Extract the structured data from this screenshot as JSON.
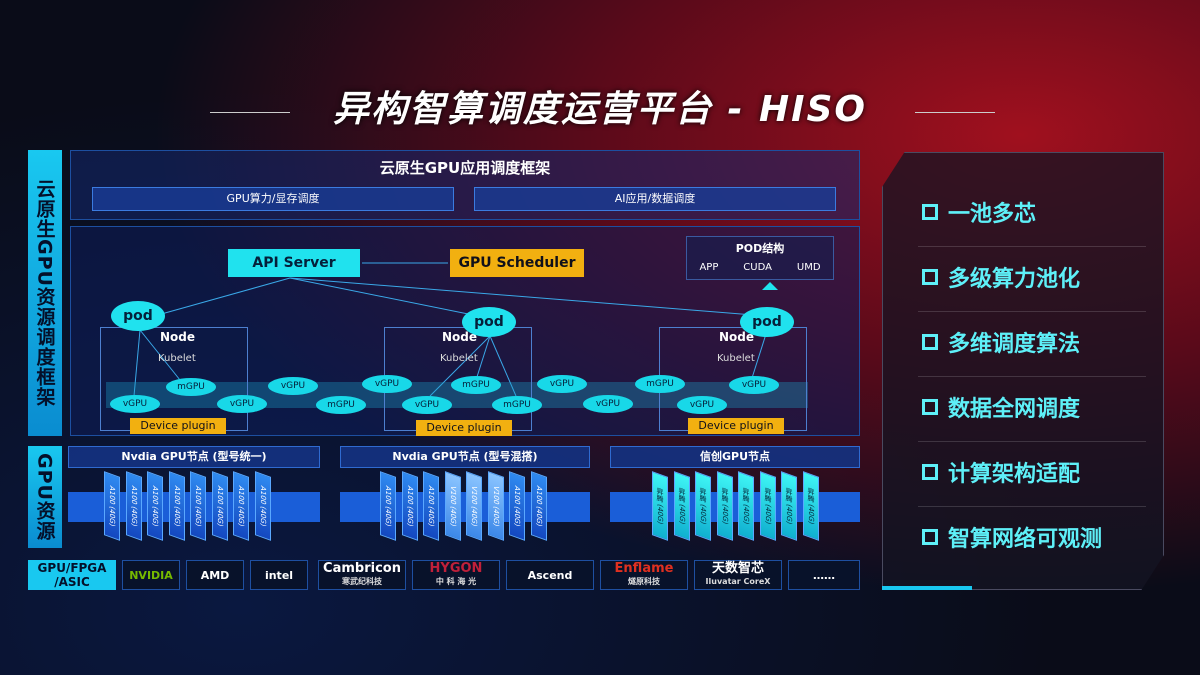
{
  "title": "异构智算调度运营平台 - HISO",
  "side_labels": {
    "top": "云原生GPU资源调度框架",
    "bottom": "GPU资源",
    "vendor": "GPU/FPGA /ASIC"
  },
  "framework": {
    "title": "云原生GPU应用调度框架",
    "bars": [
      "GPU算力/显存调度",
      "AI应用/数据调度"
    ]
  },
  "api_server": "API Server",
  "gpu_scheduler": "GPU Scheduler",
  "pod_struct": {
    "title": "POD结构",
    "items": [
      "APP",
      "CUDA",
      "UMD"
    ]
  },
  "pod": "pod",
  "node": "Node",
  "kubelet": "Kubelet",
  "device_plugin": "Device plugin",
  "ellipses": [
    "vGPU",
    "mGPU",
    "vGPU",
    "vGPU",
    "mGPU",
    "vGPU",
    "vGPU",
    "mGPU",
    "mGPU",
    "vGPU",
    "vGPU",
    "mGPU",
    "vGPU",
    "vGPU"
  ],
  "gpu_nodes": [
    {
      "title": "Nvdia GPU节点 (型号统一)",
      "chips": [
        "A100 (40G)",
        "A100 (40G)",
        "A100 (40G)",
        "A100 (40G)",
        "A100 (40G)",
        "A100 (40G)",
        "A100 (40G)",
        "A100 (40G)"
      ]
    },
    {
      "title": "Nvdia GPU节点 (型号混搭)",
      "chips": [
        "A100 (40G)",
        "A100 (40G)",
        "A100 (40G)",
        "V100 (40G)",
        "V100 (40G)",
        "V100 (40G)",
        "A100 (40G)",
        "A100 (40G)"
      ]
    },
    {
      "title": "信创GPU节点",
      "chips": [
        "昇腾 (40G)",
        "昇腾 (40G)",
        "昇腾 (40G)",
        "昇腾 (40G)",
        "昇腾 (40G)",
        "昇腾 (40G)",
        "昇腾 (40G)",
        "昇腾 (40G)"
      ]
    }
  ],
  "vendors": [
    {
      "name": "NVIDIA",
      "color": "#76b900"
    },
    {
      "name": "AMD",
      "color": "#ffffff"
    },
    {
      "name": "intel",
      "color": "#ffffff"
    },
    {
      "name": "Cambricon",
      "sub": "寒武纪科技",
      "color": "#ffffff"
    },
    {
      "name": "HYGON",
      "sub": "中 科 海 光",
      "color": "#c0203a"
    },
    {
      "name": "Ascend",
      "color": "#ffffff"
    },
    {
      "name": "Enflame",
      "sub": "燧原科技",
      "color": "#e03020"
    },
    {
      "name": "天数智芯",
      "sub": "Iluvatar CoreX",
      "color": "#ffffff"
    },
    {
      "name": "……",
      "color": "#ffffff"
    }
  ],
  "features": [
    "一池多芯",
    "多级算力池化",
    "多维调度算法",
    "数据全网调度",
    "计算架构适配",
    "智算网络可观测"
  ],
  "colors": {
    "accent": "#5ef0f8",
    "yellow": "#f2b010"
  }
}
